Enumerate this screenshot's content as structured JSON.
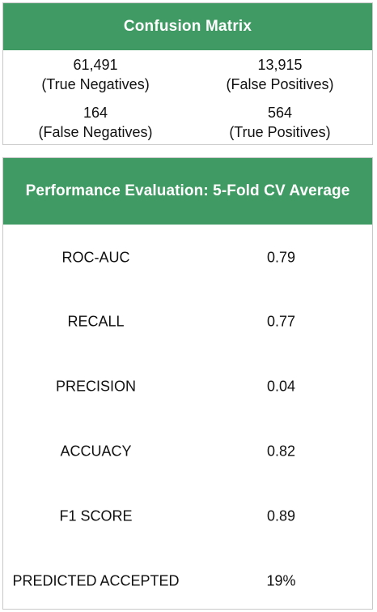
{
  "confusion_matrix": {
    "title": "Confusion Matrix",
    "cells": [
      {
        "value": "61,491",
        "label": "(True Negatives)"
      },
      {
        "value": "13,915",
        "label": "(False Positives)"
      },
      {
        "value": "164",
        "label": "(False Negatives)"
      },
      {
        "value": "564",
        "label": "(True Positives)"
      }
    ]
  },
  "performance": {
    "title": "Performance Evaluation: 5-Fold CV Average",
    "rows": [
      {
        "metric": "ROC-AUC",
        "value": "0.79"
      },
      {
        "metric": "RECALL",
        "value": "0.77"
      },
      {
        "metric": "PRECISION",
        "value": "0.04"
      },
      {
        "metric": "ACCUACY",
        "value": "0.82"
      },
      {
        "metric": "F1 SCORE",
        "value": "0.89"
      },
      {
        "metric": "PREDICTED ACCEPTED",
        "value": "19%"
      }
    ]
  },
  "colors": {
    "header_green": "#3f9a63",
    "header_text": "#ffffff",
    "border": "#c8c8c8"
  }
}
